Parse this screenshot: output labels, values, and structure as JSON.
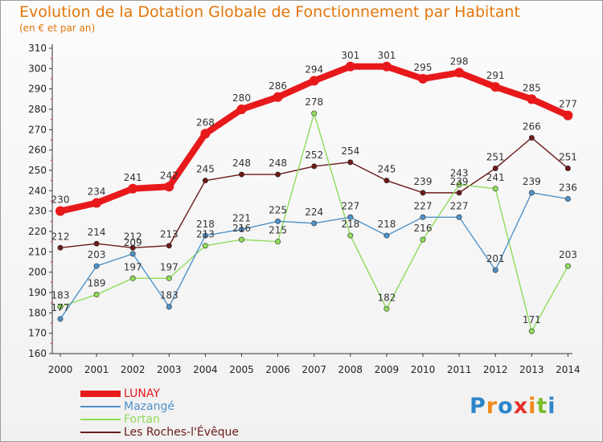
{
  "title": "Evolution de la Dotation Globale de Fonctionnement par Habitant",
  "subtitle": "(en € et par an)",
  "logo": {
    "text": "Proxiti",
    "letter_colors": [
      "#2d86c8",
      "#f08a1a",
      "#2d86c8",
      "#e5312a",
      "#f08a1a",
      "#7cbd2e",
      "#2d86c8"
    ]
  },
  "chart_data": {
    "type": "line",
    "title": "Evolution de la Dotation Globale de Fonctionnement par Habitant",
    "subtitle": "(en € et par an)",
    "xlabel": "",
    "ylabel": "",
    "x": [
      "2000",
      "2001",
      "2002",
      "2003",
      "2004",
      "2005",
      "2006",
      "2007",
      "2008",
      "2009",
      "2010",
      "2011",
      "2012",
      "2013",
      "2014"
    ],
    "ylim": [
      160,
      310
    ],
    "yticks": [
      160,
      170,
      180,
      190,
      200,
      210,
      220,
      230,
      240,
      250,
      260,
      270,
      280,
      290,
      300,
      310
    ],
    "grid": false,
    "legend_position": "bottom-left",
    "series": [
      {
        "name": "LUNAY",
        "color": "#e8191b",
        "values": [
          230,
          234,
          241,
          242,
          268,
          280,
          286,
          294,
          301,
          301,
          295,
          298,
          291,
          285,
          277
        ]
      },
      {
        "name": "Mazangé",
        "color": "#4f92c9",
        "values": [
          177,
          203,
          209,
          183,
          218,
          221,
          225,
          224,
          227,
          218,
          227,
          227,
          201,
          239,
          236
        ]
      },
      {
        "name": "Fortan",
        "color": "#8fdc5a",
        "values": [
          183,
          189,
          197,
          197,
          213,
          216,
          215,
          278,
          218,
          182,
          216,
          243,
          241,
          171,
          203
        ]
      },
      {
        "name": "Les Roches-l'Évêque",
        "color": "#6b1a1a",
        "values": [
          212,
          214,
          212,
          213,
          245,
          248,
          248,
          252,
          254,
          245,
          239,
          239,
          251,
          266,
          251
        ]
      }
    ],
    "point_labels": {
      "LUNAY": [
        "230",
        "234",
        "241",
        "242",
        "268",
        "280",
        "286",
        "294",
        "301",
        "301",
        "295",
        "298",
        "291",
        "285",
        "277"
      ],
      "Mazangé": [
        "177",
        "203",
        "209",
        "183",
        "218",
        "221",
        "225",
        "224",
        "227",
        "218",
        "227",
        "227",
        "201",
        "239",
        "236"
      ],
      "Fortan": [
        "183",
        "189",
        "197",
        "197",
        "213",
        "216",
        "215",
        "278",
        "218",
        "182",
        "216",
        "243",
        "241",
        "171",
        "203"
      ],
      "Les Roches-l'Évêque": [
        "212",
        "214",
        "212",
        "213",
        "245",
        "248",
        "248",
        "252",
        "254",
        "245",
        "239",
        "239",
        "251",
        "266",
        "251"
      ]
    }
  }
}
